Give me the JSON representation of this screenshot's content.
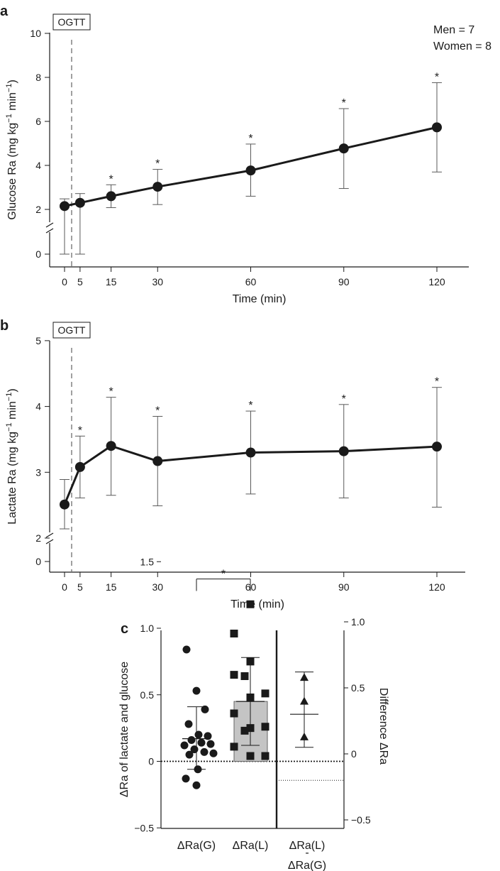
{
  "chart_data": [
    {
      "panel": "a",
      "type": "line",
      "marker_label": "OGTT",
      "legend": [
        "Men = 7",
        "Women = 8"
      ],
      "xlabel": "Time (min)",
      "ylabel": "Glucose Ra (mg kg",
      "ylabel_units": [
        "−1",
        " min",
        "−1",
        ")"
      ],
      "x_ticks": [
        0,
        5,
        15,
        30,
        60,
        90,
        120
      ],
      "y_ticks": [
        0,
        2,
        4,
        6,
        8,
        10
      ],
      "ylim": [
        0,
        10
      ],
      "axis_break": true,
      "series": [
        {
          "x": [
            0,
            5,
            15,
            30,
            60,
            90,
            120
          ],
          "values": [
            2.15,
            2.3,
            2.6,
            3.03,
            3.77,
            4.77,
            5.73
          ],
          "err_low": [
            1.83,
            1.9,
            2.08,
            2.22,
            2.6,
            2.95,
            3.7
          ],
          "err_high": [
            2.48,
            2.72,
            3.12,
            3.82,
            4.97,
            6.58,
            7.76
          ],
          "significant": [
            false,
            false,
            true,
            true,
            true,
            true,
            true
          ]
        }
      ]
    },
    {
      "panel": "b",
      "type": "line",
      "marker_label": "OGTT",
      "xlabel": "Time (min)",
      "ylabel": "Lactate Ra (mg kg",
      "ylabel_units": [
        "−1",
        " min",
        "−1",
        ")"
      ],
      "x_ticks": [
        0,
        5,
        15,
        30,
        60,
        90,
        120
      ],
      "y_ticks": [
        0,
        2,
        3,
        4,
        5
      ],
      "ylim": [
        2,
        5
      ],
      "axis_break": true,
      "series": [
        {
          "x": [
            0,
            5,
            15,
            30,
            60,
            90,
            120
          ],
          "values": [
            2.51,
            3.08,
            3.4,
            3.17,
            3.3,
            3.32,
            3.39
          ],
          "err_low": [
            2.14,
            2.61,
            2.65,
            2.49,
            2.67,
            2.61,
            2.47
          ],
          "err_high": [
            2.89,
            3.55,
            4.14,
            3.85,
            3.93,
            4.03,
            4.29
          ],
          "significant": [
            false,
            true,
            true,
            true,
            true,
            true,
            true
          ]
        }
      ]
    },
    {
      "panel": "c",
      "type": "scatter",
      "ylabel": "ΔRa of lactate and glucose",
      "ylabel_right": "Difference ΔRa",
      "y_ticks": [
        "1.5",
        "1.0",
        "0.5",
        "0",
        "−0.5"
      ],
      "y_tick_values": [
        1.5,
        1.0,
        0.5,
        0,
        -0.5
      ],
      "ylim": [
        -0.5,
        1.5
      ],
      "y_ticks_right": [
        "1.0",
        "0.5",
        "0",
        "−0.5"
      ],
      "y_tick_values_right": [
        1.0,
        0.5,
        0,
        -0.5
      ],
      "ylim_right": [
        -0.75,
        1.25
      ],
      "categories": [
        "ΔRa(G)",
        "ΔRa(L)",
        "ΔRa(L)",
        "-",
        "ΔRa(G)"
      ],
      "significance_marker": "*",
      "groups": [
        {
          "name": "ΔRa(G)",
          "marker": "circle",
          "mean": 0.17,
          "sd_low": -0.06,
          "sd_high": 0.41,
          "points": [
            0.84,
            0.53,
            0.39,
            0.28,
            0.2,
            0.19,
            0.16,
            0.14,
            0.13,
            0.12,
            0.09,
            0.07,
            0.06,
            0.05,
            -0.06,
            -0.13,
            -0.18
          ]
        },
        {
          "name": "ΔRa(L)",
          "marker": "square",
          "mean": 0.45,
          "sd_low": 0.12,
          "sd_high": 0.78,
          "points": [
            1.18,
            0.96,
            0.75,
            0.65,
            0.64,
            0.51,
            0.48,
            0.36,
            0.26,
            0.25,
            0.23,
            0.11,
            0.04,
            0.04
          ]
        },
        {
          "name": "Difference",
          "marker": "triangle",
          "axis": "right",
          "mean": 0.3,
          "sd_low": 0.05,
          "sd_high": 0.62,
          "points": [
            0.58,
            0.4,
            0.13
          ]
        }
      ]
    }
  ],
  "panel_labels": [
    "a",
    "b",
    "c"
  ]
}
